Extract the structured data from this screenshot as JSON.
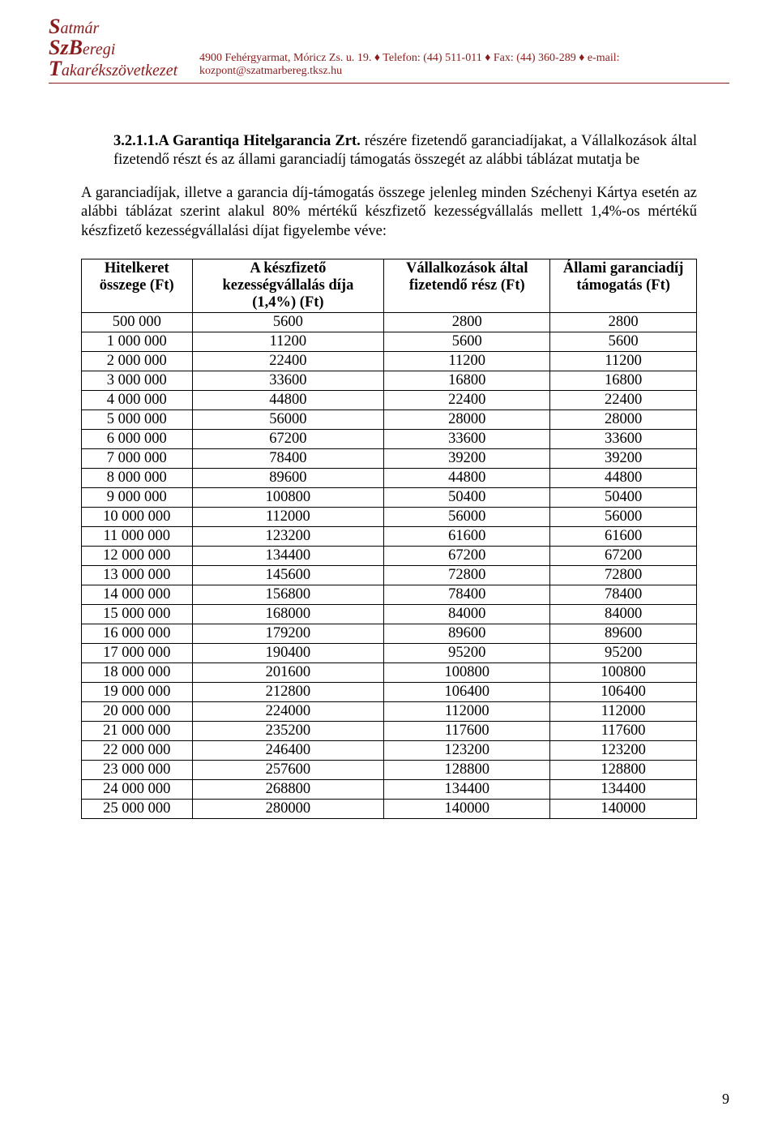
{
  "header": {
    "logo_line1_caps": "S",
    "logo_line1_rest": "atmár",
    "logo_line2_caps": "Sz",
    "logo_line2_rest": "B",
    "logo_line2_tail": "eregi",
    "logo_line3_caps": "T",
    "logo_line3_rest": "akarékszövetkezet",
    "contact": "4900 Fehérgyarmat, Móricz Zs. u. 19. ♦ Telefon: (44) 511-011 ♦ Fax: (44) 360-289 ♦ e-mail: kozpont@szatmarbereg.tksz.hu"
  },
  "section": {
    "number": "3.2.1.1.",
    "title": "A Garantiqa Hitelgarancia Zrt.",
    "rest": " részére fizetendő garanciadíjakat, a Vállalkozások által fizetendő részt és az állami garanciadíj támogatás összegét az alábbi táblázat mutatja be"
  },
  "paragraph": "A garanciadíjak, illetve a garancia díj-támogatás összege jelenleg minden Széchenyi Kártya esetén az alábbi táblázat szerint alakul 80% mértékű készfizető kezességvállalás mellett 1,4%-os mértékű készfizető kezességvállalási díjat figyelembe véve:",
  "table": {
    "columns": [
      "Hitelkeret összege (Ft)",
      "A készfizető kezességvállalás díja (1,4%) (Ft)",
      "Vállalkozások által fizetendő rész (Ft)",
      "Állami garanciadíj támogatás (Ft)"
    ],
    "rows": [
      [
        "500 000",
        "5600",
        "2800",
        "2800"
      ],
      [
        "1 000 000",
        "11200",
        "5600",
        "5600"
      ],
      [
        "2 000 000",
        "22400",
        "11200",
        "11200"
      ],
      [
        "3 000 000",
        "33600",
        "16800",
        "16800"
      ],
      [
        "4 000 000",
        "44800",
        "22400",
        "22400"
      ],
      [
        "5 000 000",
        "56000",
        "28000",
        "28000"
      ],
      [
        "6 000 000",
        "67200",
        "33600",
        "33600"
      ],
      [
        "7 000 000",
        "78400",
        "39200",
        "39200"
      ],
      [
        "8 000 000",
        "89600",
        "44800",
        "44800"
      ],
      [
        "9 000 000",
        "100800",
        "50400",
        "50400"
      ],
      [
        "10 000 000",
        "112000",
        "56000",
        "56000"
      ],
      [
        "11 000 000",
        "123200",
        "61600",
        "61600"
      ],
      [
        "12 000 000",
        "134400",
        "67200",
        "67200"
      ],
      [
        "13 000 000",
        "145600",
        "72800",
        "72800"
      ],
      [
        "14 000 000",
        "156800",
        "78400",
        "78400"
      ],
      [
        "15 000 000",
        "168000",
        "84000",
        "84000"
      ],
      [
        "16 000 000",
        "179200",
        "89600",
        "89600"
      ],
      [
        "17 000 000",
        "190400",
        "95200",
        "95200"
      ],
      [
        "18 000 000",
        "201600",
        "100800",
        "100800"
      ],
      [
        "19 000 000",
        "212800",
        "106400",
        "106400"
      ],
      [
        "20 000 000",
        "224000",
        "112000",
        "112000"
      ],
      [
        "21 000 000",
        "235200",
        "117600",
        "117600"
      ],
      [
        "22 000 000",
        "246400",
        "123200",
        "123200"
      ],
      [
        "23 000 000",
        "257600",
        "128800",
        "128800"
      ],
      [
        "24 000 000",
        "268800",
        "134400",
        "134400"
      ],
      [
        "25 000 000",
        "280000",
        "140000",
        "140000"
      ]
    ],
    "colors": {
      "border": "#000000",
      "text": "#000000",
      "background": "#ffffff"
    },
    "col_align": [
      "center",
      "center",
      "center",
      "center"
    ]
  },
  "page_number": "9"
}
